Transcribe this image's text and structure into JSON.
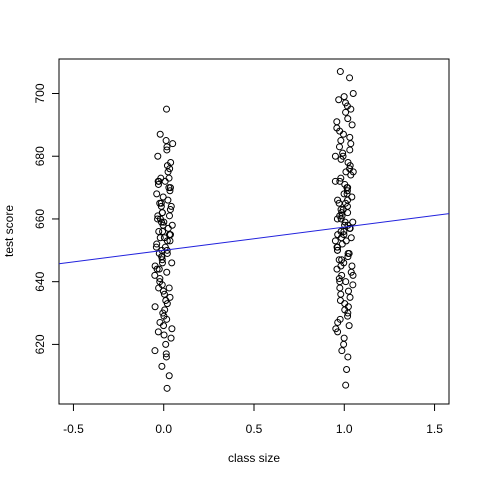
{
  "chart_data": {
    "type": "scatter",
    "xlabel": "class size",
    "ylabel": "test score",
    "xlim": [
      -0.58,
      1.58
    ],
    "ylim": [
      601,
      711
    ],
    "x_ticks": [
      "-0.5",
      "0.0",
      "0.5",
      "1.0",
      "1.5"
    ],
    "x_tick_values": [
      -0.5,
      0.0,
      0.5,
      1.0,
      1.5
    ],
    "y_ticks": [
      "620",
      "640",
      "660",
      "680",
      "700"
    ],
    "y_tick_values": [
      620,
      640,
      660,
      680,
      700
    ],
    "grid": false,
    "point_style": "open-circle",
    "point_color": "#000000",
    "series": [
      {
        "group_x": 0,
        "jitter": 0.05,
        "y": [
          695,
          687,
          685,
          684,
          683,
          682,
          680,
          678,
          677,
          676,
          675,
          673,
          673,
          672,
          672,
          672,
          671,
          670,
          670,
          669,
          668,
          667,
          666,
          665,
          665,
          664,
          664,
          663,
          662,
          662,
          661,
          661,
          660,
          660,
          659,
          659,
          658,
          658,
          657,
          656,
          656,
          655,
          655,
          654,
          654,
          653,
          653,
          652,
          651,
          651,
          650,
          650,
          649,
          649,
          648,
          648,
          647,
          646,
          646,
          645,
          644,
          644,
          643,
          642,
          641,
          640,
          639,
          638,
          638,
          637,
          636,
          635,
          634,
          633,
          632,
          631,
          630,
          629,
          628,
          627,
          626,
          625,
          624,
          623,
          622,
          620,
          618,
          617,
          616,
          613,
          610,
          606
        ]
      },
      {
        "group_x": 1,
        "jitter": 0.05,
        "y": [
          707,
          705,
          700,
          699,
          698,
          697,
          696,
          695,
          694,
          692,
          691,
          690,
          689,
          688,
          687,
          686,
          685,
          684,
          683,
          682,
          681,
          680,
          680,
          679,
          678,
          677,
          676,
          675,
          675,
          674,
          673,
          672,
          672,
          671,
          670,
          670,
          669,
          668,
          668,
          667,
          666,
          666,
          665,
          665,
          664,
          663,
          663,
          662,
          662,
          661,
          661,
          660,
          660,
          659,
          659,
          658,
          658,
          657,
          657,
          656,
          656,
          655,
          655,
          654,
          654,
          653,
          653,
          652,
          651,
          651,
          650,
          650,
          649,
          649,
          648,
          647,
          647,
          646,
          645,
          645,
          644,
          643,
          642,
          642,
          641,
          640,
          640,
          639,
          638,
          637,
          636,
          635,
          634,
          633,
          632,
          631,
          630,
          629,
          628,
          627,
          626,
          625,
          624,
          622,
          620,
          618,
          616,
          612,
          607
        ]
      }
    ],
    "regression_line": {
      "intercept": 650.0,
      "slope": 7.4,
      "color": "#2222dd"
    }
  }
}
